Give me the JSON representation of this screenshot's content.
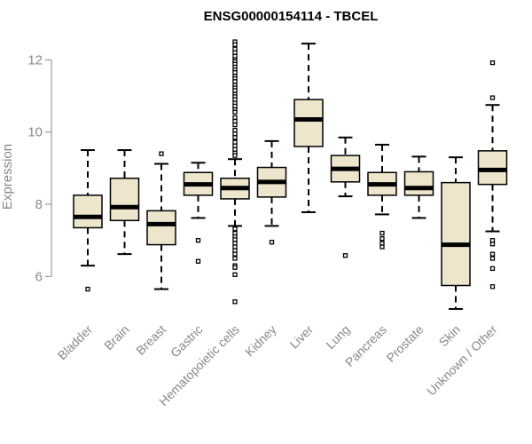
{
  "chart_data": {
    "type": "boxplot",
    "title": "ENSG00000154114 - TBCEL",
    "ylabel": "Expression",
    "ylim": [
      5.0,
      12.6
    ],
    "yticks": [
      "6",
      "8",
      "10",
      "12"
    ],
    "box_fill": "#ede6cc",
    "categories": [
      "Bladder",
      "Brain",
      "Breast",
      "Gastric",
      "Hematopoietic cells",
      "Kidney",
      "Liver",
      "Lung",
      "Pancreas",
      "Prostate",
      "Skin",
      "Unknown / Other"
    ],
    "boxes": [
      {
        "category": "Bladder",
        "min": 6.3,
        "q1": 7.35,
        "median": 7.65,
        "q3": 8.25,
        "max": 9.5,
        "outliers": [
          5.65
        ]
      },
      {
        "category": "Brain",
        "min": 6.62,
        "q1": 7.55,
        "median": 7.92,
        "q3": 8.72,
        "max": 9.5,
        "outliers": []
      },
      {
        "category": "Breast",
        "min": 5.65,
        "q1": 6.88,
        "median": 7.45,
        "q3": 7.82,
        "max": 9.12,
        "outliers": [
          9.4
        ]
      },
      {
        "category": "Gastric",
        "min": 7.62,
        "q1": 8.25,
        "median": 8.55,
        "q3": 8.88,
        "max": 9.15,
        "outliers": [
          7.0,
          6.42
        ]
      },
      {
        "category": "Hematopoietic cells",
        "min": 7.4,
        "q1": 8.15,
        "median": 8.45,
        "q3": 8.72,
        "max": 9.25,
        "outliers": [
          12.5,
          12.42,
          12.3,
          12.2,
          12.1,
          12.0,
          11.95,
          11.88,
          11.8,
          11.72,
          11.65,
          11.55,
          11.48,
          11.4,
          11.3,
          11.22,
          11.15,
          11.05,
          10.98,
          10.9,
          10.8,
          10.72,
          10.62,
          10.55,
          10.4,
          10.3,
          10.2,
          10.05,
          9.95,
          9.85,
          9.72,
          9.62,
          9.52,
          9.42,
          9.35,
          7.32,
          7.2,
          7.1,
          7.02,
          6.92,
          6.82,
          6.72,
          6.62,
          6.5,
          6.3,
          6.25,
          6.05,
          5.3
        ]
      },
      {
        "category": "Kidney",
        "min": 7.4,
        "q1": 8.2,
        "median": 8.62,
        "q3": 9.02,
        "max": 9.75,
        "outliers": [
          6.95
        ]
      },
      {
        "category": "Liver",
        "min": 7.78,
        "q1": 9.6,
        "median": 10.35,
        "q3": 10.9,
        "max": 12.45,
        "outliers": []
      },
      {
        "category": "Lung",
        "min": 8.22,
        "q1": 8.62,
        "median": 8.98,
        "q3": 9.35,
        "max": 9.85,
        "outliers": [
          6.58
        ]
      },
      {
        "category": "Pancreas",
        "min": 7.72,
        "q1": 8.25,
        "median": 8.55,
        "q3": 8.88,
        "max": 9.65,
        "outliers": [
          7.2,
          7.05,
          6.92,
          6.82
        ]
      },
      {
        "category": "Prostate",
        "min": 7.62,
        "q1": 8.25,
        "median": 8.45,
        "q3": 8.9,
        "max": 9.32,
        "outliers": []
      },
      {
        "category": "Skin",
        "min": 5.1,
        "q1": 5.75,
        "median": 6.88,
        "q3": 8.6,
        "max": 9.3,
        "outliers": []
      },
      {
        "category": "Unknown / Other",
        "min": 7.25,
        "q1": 8.55,
        "median": 8.95,
        "q3": 9.48,
        "max": 10.75,
        "outliers": [
          11.92,
          10.95,
          7.0,
          6.9,
          6.62,
          6.5,
          6.22,
          5.72
        ]
      }
    ]
  }
}
